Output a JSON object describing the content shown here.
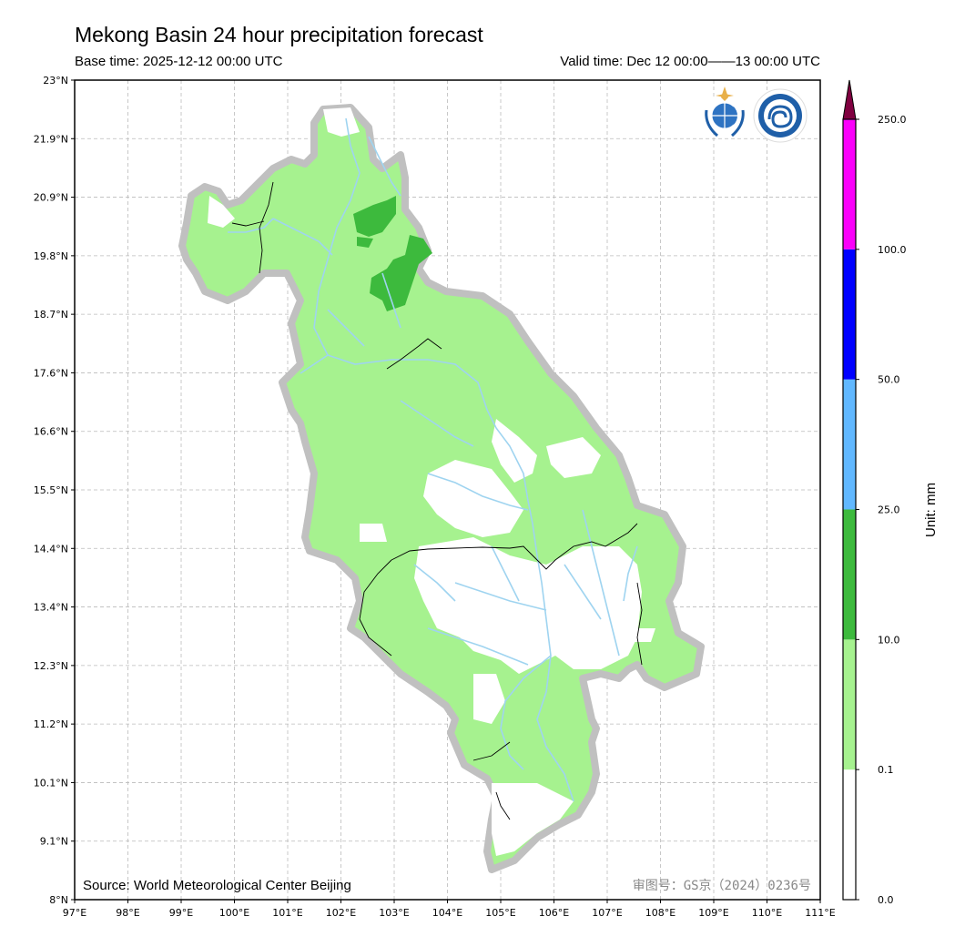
{
  "header": {
    "title": "Mekong Basin 24 hour precipitation forecast",
    "base_time": "Base time: 2025-12-12 00:00 UTC",
    "valid_time": "Valid time: Dec 12 00:00——13 00:00 UTC"
  },
  "map": {
    "source": "Source: World Meteorological Center Beijing",
    "review_number": "审图号：GS京（2024）0236号",
    "logos": [
      "wmo-logo",
      "cma-logo"
    ],
    "lat_ticks": [
      "23°N",
      "21.9°N",
      "20.9°N",
      "19.8°N",
      "18.7°N",
      "17.6°N",
      "16.6°N",
      "15.5°N",
      "14.4°N",
      "13.4°N",
      "12.3°N",
      "11.2°N",
      "10.1°N",
      "9.1°N",
      "8°N"
    ],
    "lon_ticks": [
      "97°E",
      "98°E",
      "99°E",
      "100°E",
      "101°E",
      "102°E",
      "103°E",
      "104°E",
      "105°E",
      "106°E",
      "107°E",
      "108°E",
      "109°E",
      "110°E",
      "111°E"
    ]
  },
  "colorbar": {
    "unit_label": "Unit: mm",
    "levels": [
      "0.0",
      "0.1",
      "10.0",
      "25.0",
      "50.0",
      "100.0",
      "250.0"
    ],
    "colors": [
      "#ffffff",
      "#a6f28f",
      "#3dba3d",
      "#61b8ff",
      "#0000ff",
      "#fa00fa",
      "#800040"
    ]
  },
  "colors": {
    "light_rain": "#a6f28f",
    "moderate_rain": "#3dba3d",
    "basin_outline": "#c0c0c0",
    "rivers": "#9fd4f0"
  }
}
